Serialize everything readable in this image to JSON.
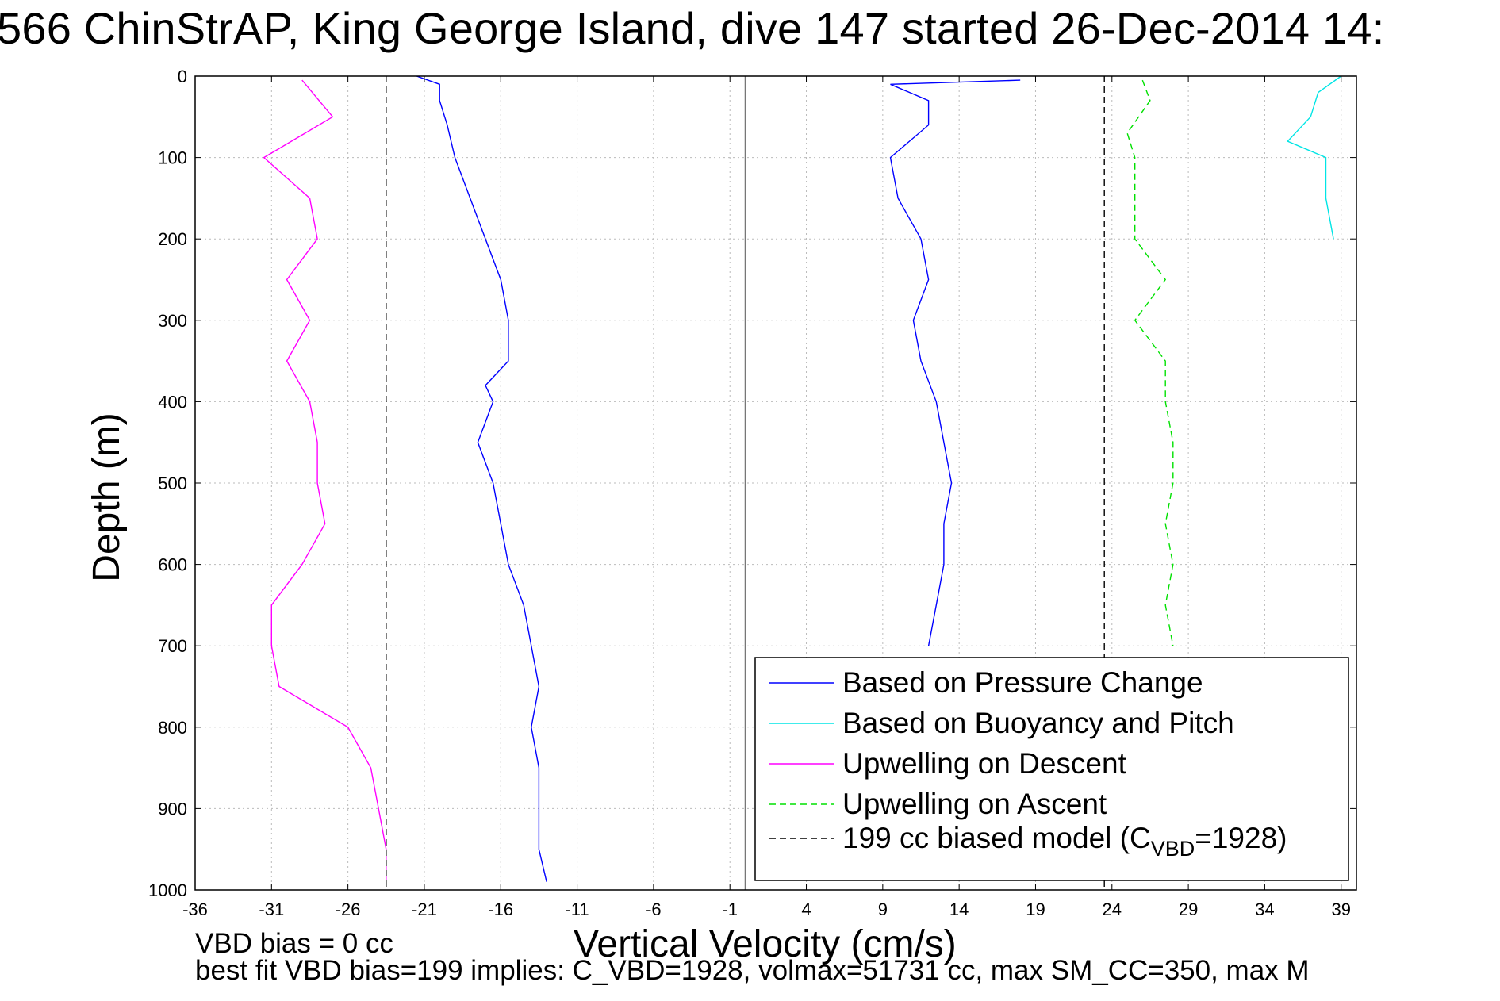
{
  "chart_data": {
    "type": "line",
    "title": "566 ChinStrAP, King George Island, dive 147 started 26-Dec-2014 14:",
    "xlabel": "Vertical Velocity (cm/s)",
    "ylabel": "Depth (m)",
    "xlim": [
      -36,
      40
    ],
    "ylim": [
      0,
      1000
    ],
    "y_reversed": true,
    "grid": true,
    "xticks": [
      -36,
      -31,
      -26,
      -21,
      -16,
      -11,
      -6,
      -1,
      4,
      9,
      14,
      19,
      24,
      29,
      34,
      39
    ],
    "yticks": [
      0,
      100,
      200,
      300,
      400,
      500,
      600,
      700,
      800,
      900,
      1000
    ],
    "legend_placement": "bottom-right",
    "series": [
      {
        "name": "Based on Pressure Change",
        "color": "#0000ff",
        "style": "solid",
        "segments": [
          {
            "depth": [
              0,
              10,
              30,
              60,
              100,
              150,
              200,
              250,
              300,
              350,
              380,
              400,
              450,
              500,
              550,
              600,
              650,
              700,
              750,
              800,
              850,
              900,
              950,
              990
            ],
            "velocity": [
              -21.5,
              -20,
              -20,
              -19.5,
              -19,
              -18,
              -17,
              -16,
              -15.5,
              -15.5,
              -17,
              -16.5,
              -17.5,
              -16.5,
              -16,
              -15.5,
              -14.5,
              -14,
              -13.5,
              -14,
              -13.5,
              -13.5,
              -13.5,
              -13
            ]
          },
          {
            "depth": [
              5,
              10,
              30,
              60,
              100,
              150,
              200,
              250,
              300,
              350,
              400,
              450,
              500,
              550,
              600,
              650,
              700
            ],
            "velocity": [
              18,
              9.5,
              12,
              12,
              9.5,
              10,
              11.5,
              12,
              11,
              11.5,
              12.5,
              13,
              13.5,
              13,
              13,
              12.5,
              12
            ]
          }
        ]
      },
      {
        "name": "Based on Buoyancy and Pitch",
        "color": "#00e5e5",
        "style": "solid",
        "segments": [
          {
            "depth": [
              0,
              20,
              50,
              80,
              100,
              150,
              200
            ],
            "velocity": [
              39,
              37.5,
              37,
              35.5,
              38,
              38,
              38.5
            ]
          }
        ]
      },
      {
        "name": "Upwelling on Descent",
        "color": "#ff00ff",
        "style": "solid",
        "segments": [
          {
            "depth": [
              5,
              50,
              100,
              150,
              200,
              250,
              300,
              350,
              400,
              450,
              500,
              550,
              600,
              650,
              700,
              750,
              800,
              850,
              900,
              950,
              990
            ],
            "velocity": [
              -29,
              -27,
              -31.5,
              -28.5,
              -28,
              -30,
              -28.5,
              -30,
              -28.5,
              -28,
              -28,
              -27.5,
              -29,
              -31,
              -31,
              -30.5,
              -26,
              -24.5,
              -24,
              -23.5,
              -23.5
            ]
          }
        ]
      },
      {
        "name": "Upwelling on Ascent",
        "color": "#00e000",
        "style": "dashed",
        "segments": [
          {
            "depth": [
              5,
              30,
              70,
              100,
              150,
              200,
              250,
              300,
              350,
              400,
              450,
              500,
              550,
              600,
              650,
              700
            ],
            "velocity": [
              26,
              26.5,
              25,
              25.5,
              25.5,
              25.5,
              27.5,
              25.5,
              27.5,
              27.5,
              28,
              28,
              27.5,
              28,
              27.5,
              28
            ]
          }
        ]
      },
      {
        "name": "199 cc biased model (C_VBD=1928)",
        "color": "#000000",
        "style": "dashed",
        "segments": [
          {
            "depth": [
              0,
              1000
            ],
            "velocity": [
              -23.5,
              -23.5
            ]
          },
          {
            "depth": [
              0,
              1000
            ],
            "velocity": [
              23.5,
              23.5
            ]
          }
        ]
      }
    ],
    "legend_entries": [
      {
        "label": "Based on Pressure Change",
        "color": "#0000ff",
        "style": "solid"
      },
      {
        "label": "Based on Buoyancy and Pitch",
        "color": "#00e5e5",
        "style": "solid"
      },
      {
        "label": "Upwelling on Descent",
        "color": "#ff00ff",
        "style": "solid"
      },
      {
        "label": "Upwelling on Ascent",
        "color": "#00e000",
        "style": "dashed"
      },
      {
        "label": "199 cc biased model (C",
        "sub": "VBD",
        "suffix": "=1928)",
        "color": "#000000",
        "style": "dashed"
      }
    ]
  },
  "footer": {
    "line1": "VBD bias = 0 cc",
    "line2": "best fit VBD bias=199 implies: C_VBD=1928, volmax=51731 cc, max SM_CC=350, max M"
  }
}
